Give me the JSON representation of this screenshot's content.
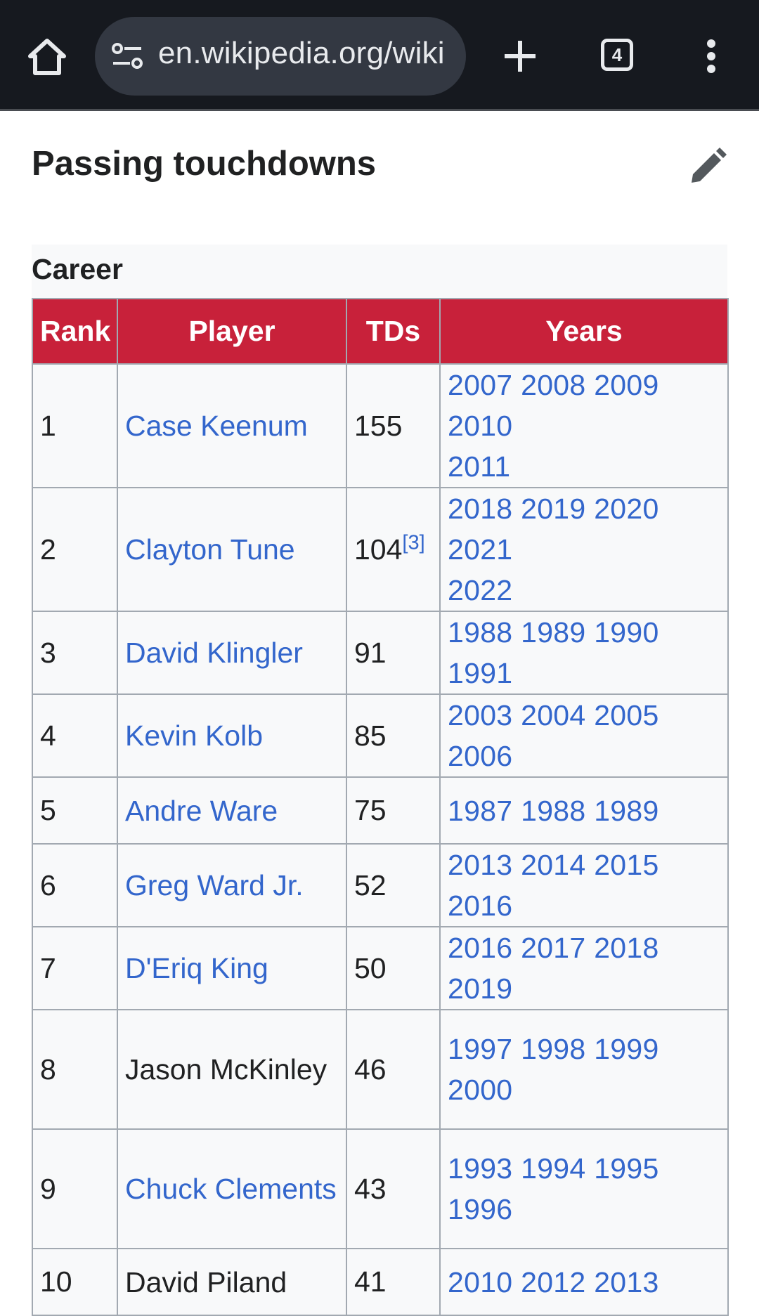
{
  "browser": {
    "url": "en.wikipedia.org/wiki",
    "tab_count": "4"
  },
  "section": {
    "title": "Passing touchdowns"
  },
  "table": {
    "caption": "Career",
    "headers": [
      "Rank",
      "Player",
      "TDs",
      "Years"
    ],
    "rows": [
      {
        "rank": "1",
        "player": "Case Keenum",
        "player_link": true,
        "tds": "155",
        "ref": "",
        "years_line1": "2007 2008 2009 2010",
        "years_line2": "2011"
      },
      {
        "rank": "2",
        "player": "Clayton Tune",
        "player_link": true,
        "tds": "104",
        "ref": "[3]",
        "years_line1": "2018 2019 2020 2021",
        "years_line2": "2022"
      },
      {
        "rank": "3",
        "player": "David Klingler",
        "player_link": true,
        "tds": "91",
        "ref": "",
        "years_line1": "1988 1989 1990 1991",
        "years_line2": ""
      },
      {
        "rank": "4",
        "player": "Kevin Kolb",
        "player_link": true,
        "tds": "85",
        "ref": "",
        "years_line1": "2003 2004 2005 2006",
        "years_line2": ""
      },
      {
        "rank": "5",
        "player": "Andre Ware",
        "player_link": true,
        "tds": "75",
        "ref": "",
        "years_line1": "1987 1988 1989",
        "years_line2": ""
      },
      {
        "rank": "6",
        "player": "Greg Ward Jr.",
        "player_link": true,
        "tds": "52",
        "ref": "",
        "years_line1": "2013 2014 2015 2016",
        "years_line2": ""
      },
      {
        "rank": "7",
        "player": "D'Eriq King",
        "player_link": true,
        "tds": "50",
        "ref": "",
        "years_line1": "2016 2017 2018 2019",
        "years_line2": ""
      },
      {
        "rank": "8",
        "player": "Jason McKinley",
        "player_link": false,
        "tds": "46",
        "ref": "",
        "years_line1": "1997 1998 1999 2000",
        "years_line2": ""
      },
      {
        "rank": "9",
        "player": "Chuck Clements",
        "player_link": true,
        "tds": "43",
        "ref": "",
        "years_line1": "1993 1994 1995 1996",
        "years_line2": ""
      },
      {
        "rank": "10",
        "player": "David Piland",
        "player_link": false,
        "tds": "41",
        "ref": "",
        "years_line1": "2010 2012 2013",
        "years_line2": ""
      }
    ]
  },
  "icons": {
    "home": "home-icon",
    "site_settings": "tune-icon",
    "new_tab": "plus-icon",
    "tab_switcher": "tab-switcher-icon",
    "menu": "more-vert-icon",
    "edit": "pencil-icon"
  },
  "colors": {
    "header_bg": "#c8213a",
    "link": "#3366cc",
    "topbar": "#16191f"
  }
}
